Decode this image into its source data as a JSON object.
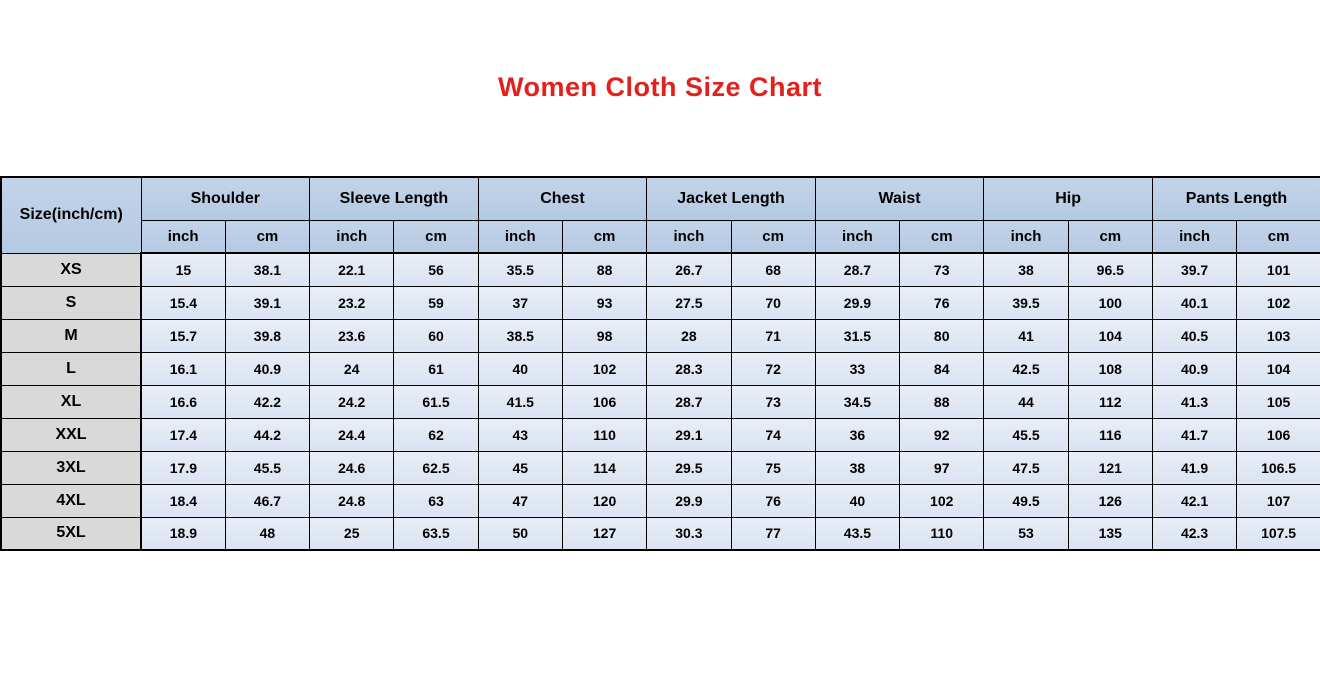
{
  "title": "Women Cloth Size Chart",
  "colors": {
    "title_red": "#e3211c",
    "header_blue": "#b8cce4",
    "size_column_gray": "#d9d9d9",
    "data_cell_blue": "#dce6f1",
    "border_black": "#000000",
    "page_background": "#ffffff"
  },
  "chart_data": {
    "type": "table",
    "title": "Women Cloth Size Chart",
    "size_column_header": "Size(inch/cm)",
    "measure_groups": [
      "Shoulder",
      "Sleeve Length",
      "Chest",
      "Jacket Length",
      "Waist",
      "Hip",
      "Pants Length"
    ],
    "unit_labels": [
      "inch",
      "cm"
    ],
    "rows": [
      {
        "size": "XS",
        "values": [
          "15",
          "38.1",
          "22.1",
          "56",
          "35.5",
          "88",
          "26.7",
          "68",
          "28.7",
          "73",
          "38",
          "96.5",
          "39.7",
          "101"
        ]
      },
      {
        "size": "S",
        "values": [
          "15.4",
          "39.1",
          "23.2",
          "59",
          "37",
          "93",
          "27.5",
          "70",
          "29.9",
          "76",
          "39.5",
          "100",
          "40.1",
          "102"
        ]
      },
      {
        "size": "M",
        "values": [
          "15.7",
          "39.8",
          "23.6",
          "60",
          "38.5",
          "98",
          "28",
          "71",
          "31.5",
          "80",
          "41",
          "104",
          "40.5",
          "103"
        ]
      },
      {
        "size": "L",
        "values": [
          "16.1",
          "40.9",
          "24",
          "61",
          "40",
          "102",
          "28.3",
          "72",
          "33",
          "84",
          "42.5",
          "108",
          "40.9",
          "104"
        ]
      },
      {
        "size": "XL",
        "values": [
          "16.6",
          "42.2",
          "24.2",
          "61.5",
          "41.5",
          "106",
          "28.7",
          "73",
          "34.5",
          "88",
          "44",
          "112",
          "41.3",
          "105"
        ]
      },
      {
        "size": "XXL",
        "values": [
          "17.4",
          "44.2",
          "24.4",
          "62",
          "43",
          "110",
          "29.1",
          "74",
          "36",
          "92",
          "45.5",
          "116",
          "41.7",
          "106"
        ]
      },
      {
        "size": "3XL",
        "values": [
          "17.9",
          "45.5",
          "24.6",
          "62.5",
          "45",
          "114",
          "29.5",
          "75",
          "38",
          "97",
          "47.5",
          "121",
          "41.9",
          "106.5"
        ]
      },
      {
        "size": "4XL",
        "values": [
          "18.4",
          "46.7",
          "24.8",
          "63",
          "47",
          "120",
          "29.9",
          "76",
          "40",
          "102",
          "49.5",
          "126",
          "42.1",
          "107"
        ]
      },
      {
        "size": "5XL",
        "values": [
          "18.9",
          "48",
          "25",
          "63.5",
          "50",
          "127",
          "30.3",
          "77",
          "43.5",
          "110",
          "53",
          "135",
          "42.3",
          "107.5"
        ]
      }
    ]
  }
}
